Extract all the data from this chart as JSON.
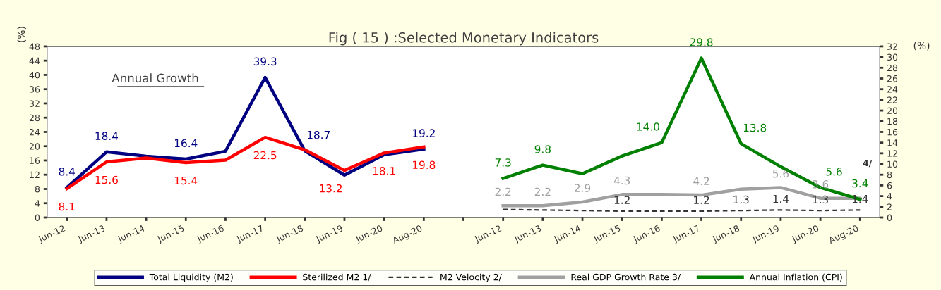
{
  "chart_data": {
    "type": "line",
    "title": "Fig ( 15 ) :Selected Monetary Indicators",
    "ylabel": "(%)",
    "y2label": "(%)",
    "categories": [
      "Jun-12",
      "Jun-13",
      "Jun-14",
      "Jun-15",
      "Jun-16",
      "Jun-17",
      "Jun-18",
      "Jun-19",
      "Jun-20",
      "Aug-20",
      null,
      "Jun-12",
      "Jun-13",
      "Jun-14",
      "Jun-15",
      "Jun-16",
      "Jun-17",
      "Jun-18",
      "Jun-19",
      "Jun-20",
      "Aug-20"
    ],
    "series": [
      {
        "name": "Total Liquidity (M2)",
        "color": "#000080",
        "values": [
          8.4,
          18.4,
          17.2,
          16.4,
          18.6,
          39.3,
          18.7,
          11.9,
          17.6,
          19.2,
          null,
          null,
          null,
          null,
          null,
          null,
          null,
          null,
          null,
          null,
          null
        ],
        "value_labels": [
          "8.4",
          "18.4",
          null,
          "16.4",
          null,
          "39.3",
          "18.7",
          null,
          null,
          "19.2",
          null,
          null,
          null,
          null,
          null,
          null,
          null,
          null,
          null,
          null,
          null
        ]
      },
      {
        "name": "Sterilized M2 1/",
        "color": "#ff0000",
        "values": [
          8.1,
          15.6,
          16.7,
          15.4,
          16.1,
          22.5,
          19.0,
          13.2,
          18.1,
          19.8,
          null,
          null,
          null,
          null,
          null,
          null,
          null,
          null,
          null,
          null,
          null
        ],
        "value_labels": [
          "8.1",
          "15.6",
          null,
          "15.4",
          null,
          "22.5",
          null,
          "13.2",
          "18.1",
          "19.8",
          null,
          null,
          null,
          null,
          null,
          null,
          null,
          null,
          null,
          null,
          null
        ]
      },
      {
        "name": "M2 Velocity 2/",
        "color": "#333333",
        "line_style": "dashed",
        "axis": "y2",
        "values": [
          null,
          null,
          null,
          null,
          null,
          null,
          null,
          null,
          null,
          null,
          null,
          1.5,
          1.4,
          1.3,
          1.2,
          1.2,
          1.2,
          1.3,
          1.4,
          1.3,
          1.4
        ],
        "value_labels": [
          null,
          null,
          null,
          null,
          null,
          null,
          null,
          null,
          null,
          null,
          null,
          null,
          null,
          null,
          "1.2",
          null,
          "1.2",
          "1.3",
          "1.4",
          "1.3",
          "1.4"
        ]
      },
      {
        "name": "Real GDP Growth Rate 3/",
        "color": "#a0a0a0",
        "axis": "y2",
        "values": [
          null,
          null,
          null,
          null,
          null,
          null,
          null,
          null,
          null,
          null,
          null,
          2.2,
          2.2,
          2.9,
          4.3,
          4.3,
          4.2,
          5.3,
          5.6,
          3.6,
          3.6
        ],
        "value_labels": [
          null,
          null,
          null,
          null,
          null,
          null,
          null,
          null,
          null,
          null,
          null,
          "2.2",
          "2.2",
          "2.9",
          "4.3",
          null,
          "4.2",
          null,
          "5.6",
          "3.6",
          null
        ]
      },
      {
        "name": "Annual Inflation (CPI)",
        "color": "#008000",
        "axis": "y2",
        "values": [
          null,
          null,
          null,
          null,
          null,
          null,
          null,
          null,
          null,
          null,
          null,
          7.3,
          9.8,
          8.2,
          11.5,
          14.0,
          29.8,
          13.8,
          9.5,
          5.6,
          3.4
        ],
        "value_labels": [
          null,
          null,
          null,
          null,
          null,
          null,
          null,
          null,
          null,
          null,
          null,
          "7.3",
          "9.8",
          null,
          null,
          "14.0",
          "29.8",
          "13.8",
          null,
          "5.6",
          "3.4"
        ]
      }
    ],
    "annotations": [
      "Annual Growth",
      "4/"
    ],
    "ylim": [
      0,
      48
    ],
    "yticks": [
      0,
      4,
      8,
      12,
      16,
      20,
      24,
      28,
      32,
      36,
      40,
      44,
      48
    ],
    "y2lim": [
      0,
      32
    ],
    "y2ticks": [
      0,
      2,
      4,
      6,
      8,
      10,
      12,
      14,
      16,
      18,
      20,
      22,
      24,
      26,
      28,
      30,
      32
    ],
    "grid": false,
    "legend": "bottom"
  }
}
